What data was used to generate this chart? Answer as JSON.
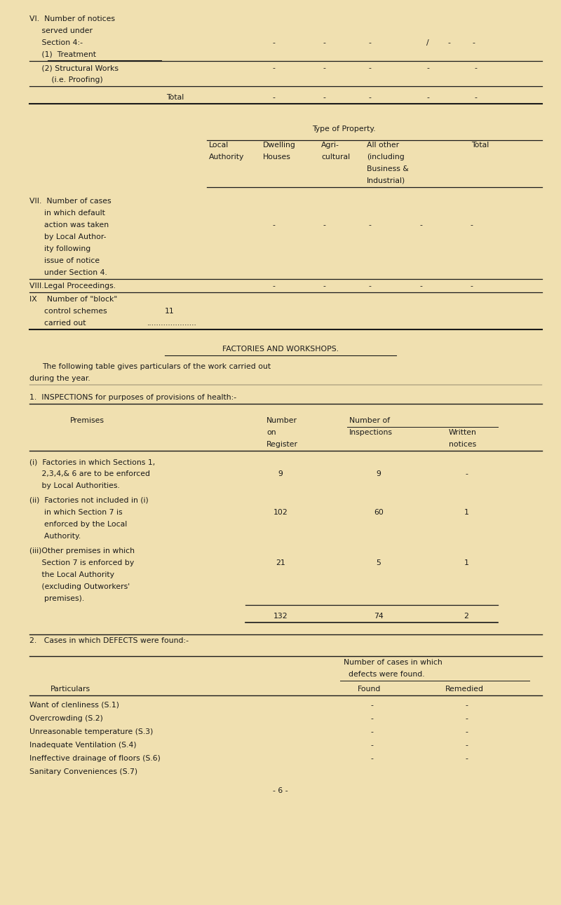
{
  "bg_color": "#f0e0b0",
  "text_color": "#1a1a1a",
  "font_family": "Courier New",
  "font_size": 7.8,
  "page_width": 8.0,
  "page_height": 12.91,
  "defects_rows": [
    "Want of clenliness (S.1)",
    "Overcrowding (S.2)",
    "Unreasonable temperature (S.3)",
    "Inadequate Ventilation (S.4)",
    "Ineffective drainage of floors (S.6)",
    "Sanitary Conveniences (S.7)"
  ],
  "page_number": "- 6 -"
}
